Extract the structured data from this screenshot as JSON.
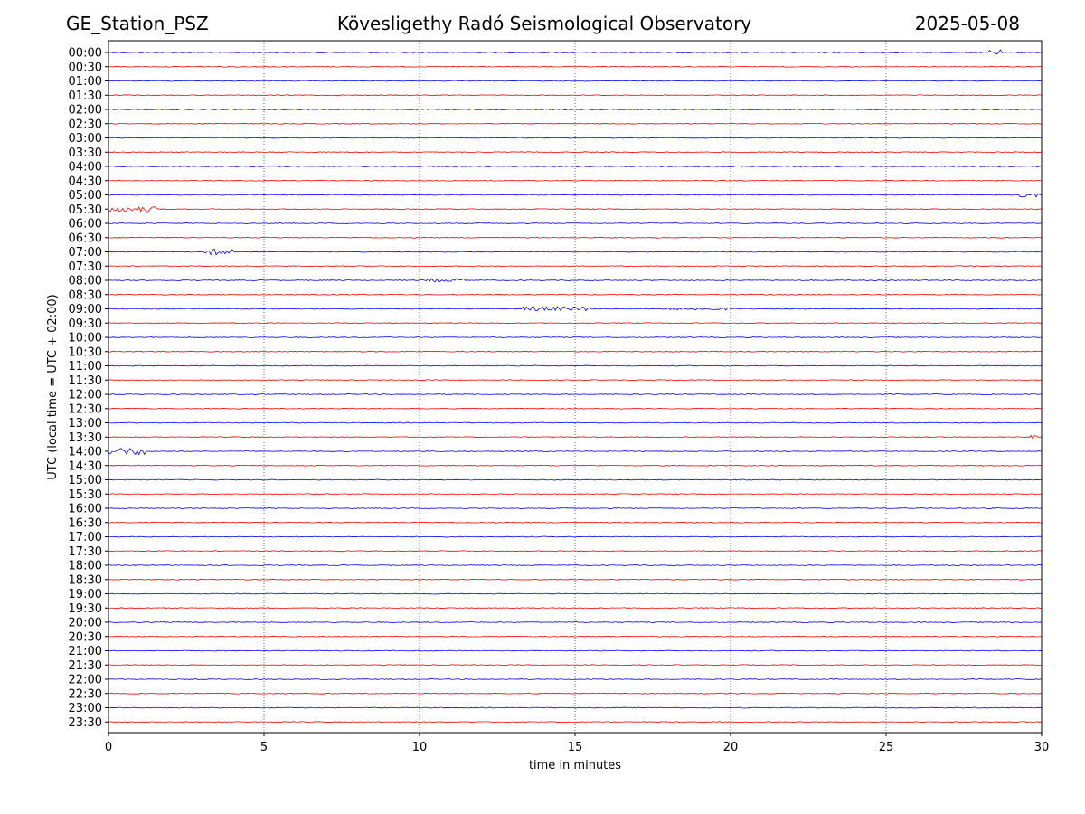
{
  "header": {
    "station": "GE_Station_PSZ",
    "observatory": "Kövesligethy Radó Seismological Observatory",
    "date": "2025-05-08"
  },
  "chart_data": {
    "type": "line",
    "title": "Kövesligethy Radó Seismological Observatory",
    "xlabel": "time in minutes",
    "ylabel": "UTC (local time = UTC + 02:00)",
    "xlim": [
      0,
      30
    ],
    "xticks": [
      "0",
      "5",
      "10",
      "15",
      "20",
      "25",
      "30"
    ],
    "grid_x": true,
    "colors": [
      "#0000ff",
      "#ff0000"
    ],
    "traces": [
      "00:00",
      "00:30",
      "01:00",
      "01:30",
      "02:00",
      "02:30",
      "03:00",
      "03:30",
      "04:00",
      "04:30",
      "05:00",
      "05:30",
      "06:00",
      "06:30",
      "07:00",
      "07:30",
      "08:00",
      "08:30",
      "09:00",
      "09:30",
      "10:00",
      "10:30",
      "11:00",
      "11:30",
      "12:00",
      "12:30",
      "13:00",
      "13:30",
      "14:00",
      "14:30",
      "15:00",
      "15:30",
      "16:00",
      "16:30",
      "17:00",
      "17:30",
      "18:00",
      "18:30",
      "19:00",
      "19:30",
      "20:00",
      "20:30",
      "21:00",
      "21:30",
      "22:00",
      "22:30",
      "23:00",
      "23:30"
    ],
    "events": [
      {
        "trace": "00:00",
        "start": 28.3,
        "end": 28.7,
        "amplitude": 3
      },
      {
        "trace": "05:00",
        "start": 29.3,
        "end": 30.0,
        "amplitude": 2.5
      },
      {
        "trace": "05:30",
        "start": 0.0,
        "end": 1.5,
        "amplitude": 3
      },
      {
        "trace": "07:00",
        "start": 3.1,
        "end": 4.0,
        "amplitude": 3.5
      },
      {
        "trace": "08:00",
        "start": 10.2,
        "end": 11.5,
        "amplitude": 2
      },
      {
        "trace": "09:00",
        "start": 13.3,
        "end": 15.5,
        "amplitude": 2.5
      },
      {
        "trace": "09:00",
        "start": 17.8,
        "end": 20.0,
        "amplitude": 1.5
      },
      {
        "trace": "13:30",
        "start": 29.6,
        "end": 30.0,
        "amplitude": 2
      },
      {
        "trace": "14:00",
        "start": 0.0,
        "end": 1.2,
        "amplitude": 4
      }
    ]
  }
}
